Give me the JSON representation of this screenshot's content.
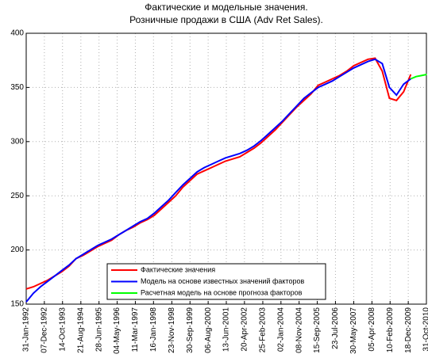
{
  "chart_data": {
    "type": "line",
    "title": "Фактические и модельные значения.",
    "subtitle": "Розничные продажи в США (Adv Ret Sales).",
    "series": [
      {
        "name": "Фактические значения",
        "color": "#ff0000",
        "x": [
          0,
          4,
          8,
          12,
          16,
          20,
          24,
          28,
          32,
          36,
          40,
          44,
          48,
          52,
          56,
          60,
          64,
          68,
          72,
          76,
          80,
          84,
          88,
          92,
          96,
          100,
          104,
          108,
          112,
          116,
          120,
          124,
          128,
          132,
          136,
          140,
          144,
          148,
          152,
          156,
          160,
          164,
          168,
          172,
          176,
          180,
          184,
          188,
          192,
          196,
          200,
          204,
          208,
          212,
          216
        ],
        "values": [
          164,
          166,
          169,
          172,
          176,
          180,
          185,
          192,
          195,
          199,
          203,
          206,
          209,
          214,
          218,
          221,
          225,
          228,
          232,
          238,
          244,
          250,
          258,
          264,
          270,
          273,
          276,
          279,
          282,
          284,
          286,
          290,
          294,
          299,
          305,
          311,
          318,
          325,
          332,
          338,
          344,
          352,
          355,
          358,
          361,
          365,
          370,
          373,
          376,
          377,
          365,
          340,
          338,
          346,
          362
        ]
      },
      {
        "name": "Модель на основе известных значений факторов",
        "color": "#0000ff",
        "x": [
          0,
          4,
          8,
          12,
          16,
          20,
          24,
          28,
          32,
          36,
          40,
          44,
          48,
          52,
          56,
          60,
          64,
          68,
          72,
          76,
          80,
          84,
          88,
          92,
          96,
          100,
          104,
          108,
          112,
          116,
          120,
          124,
          128,
          132,
          136,
          140,
          144,
          148,
          152,
          156,
          160,
          164,
          168,
          172,
          176,
          180,
          184,
          188,
          192,
          196,
          200,
          204,
          208,
          212,
          216
        ],
        "values": [
          152,
          160,
          166,
          171,
          176,
          181,
          186,
          192,
          196,
          200,
          204,
          207,
          210,
          214,
          218,
          222,
          226,
          229,
          234,
          240,
          246,
          253,
          260,
          266,
          272,
          276,
          279,
          282,
          285,
          287,
          289,
          292,
          296,
          301,
          307,
          313,
          319,
          326,
          333,
          340,
          345,
          350,
          353,
          356,
          360,
          364,
          368,
          371,
          374,
          376,
          372,
          350,
          343,
          353,
          358
        ]
      },
      {
        "name": "Расчетная модель на основе прогноза факторов",
        "color": "#00ff00",
        "x": [
          216,
          219,
          222,
          225
        ],
        "values": [
          358,
          360,
          361,
          362
        ]
      }
    ],
    "xlim": [
      0,
      224.8
    ],
    "xticks": [
      {
        "value": 0,
        "label": "31-Jan-1992"
      },
      {
        "value": 10.2,
        "label": "07-Dec-1992"
      },
      {
        "value": 20.4,
        "label": "14-Oct-1993"
      },
      {
        "value": 30.7,
        "label": "21-Aug-1994"
      },
      {
        "value": 40.9,
        "label": "28-Jun-1995"
      },
      {
        "value": 51.1,
        "label": "04-May-1996"
      },
      {
        "value": 61.3,
        "label": "11-Mar-1997"
      },
      {
        "value": 71.5,
        "label": "16-Jan-1998"
      },
      {
        "value": 81.8,
        "label": "23-Nov-1998"
      },
      {
        "value": 92.0,
        "label": "30-Sep-1999"
      },
      {
        "value": 102.2,
        "label": "06-Aug-2000"
      },
      {
        "value": 112.4,
        "label": "13-Jun-2001"
      },
      {
        "value": 122.6,
        "label": "20-Apr-2002"
      },
      {
        "value": 132.9,
        "label": "25-Feb-2003"
      },
      {
        "value": 143.1,
        "label": "02-Jan-2004"
      },
      {
        "value": 153.3,
        "label": "08-Nov-2004"
      },
      {
        "value": 163.5,
        "label": "15-Sep-2005"
      },
      {
        "value": 173.7,
        "label": "23-Jul-2006"
      },
      {
        "value": 184.0,
        "label": "30-May-2007"
      },
      {
        "value": 194.2,
        "label": "05-Apr-2008"
      },
      {
        "value": 204.4,
        "label": "10-Feb-2009"
      },
      {
        "value": 214.6,
        "label": "18-Dec-2009"
      },
      {
        "value": 224.8,
        "label": "31-Oct-2010"
      }
    ],
    "ylim": [
      150,
      400
    ],
    "yticks": [
      150,
      200,
      250,
      300,
      350,
      400
    ],
    "grid": true,
    "legend": "lower center"
  }
}
